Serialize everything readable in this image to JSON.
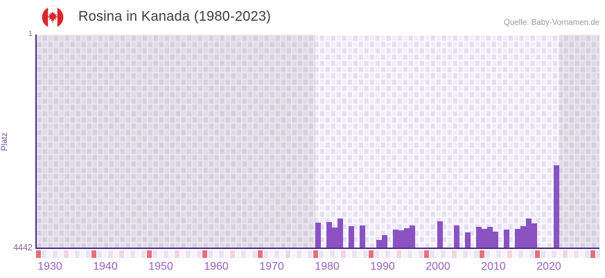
{
  "header": {
    "title": "Rosina in Kanada (1980-2023)",
    "source": "Quelle: Baby-Vornamen.de",
    "flag": "canada"
  },
  "chart_data": {
    "type": "bar",
    "title": "Rosina in Kanada (1980-2023)",
    "xlabel": "",
    "ylabel": "Platz",
    "y_axis": {
      "min": 1,
      "max": 4442,
      "inverted": true,
      "top_tick_label": "1",
      "bottom_tick_label": "4442"
    },
    "x_axis": {
      "start_year": 1928,
      "end_year": 2029,
      "tick_labels": [
        "1930",
        "1940",
        "1950",
        "1960",
        "1970",
        "1980",
        "1990",
        "2000",
        "2010",
        "2020"
      ]
    },
    "grid": "checkerboard",
    "legend": false,
    "series": [
      {
        "name": "Platz",
        "points": [
          {
            "year": 1978,
            "rank": 3920
          },
          {
            "year": 1980,
            "rank": 3910
          },
          {
            "year": 1981,
            "rank": 4030
          },
          {
            "year": 1982,
            "rank": 3840
          },
          {
            "year": 1984,
            "rank": 4000
          },
          {
            "year": 1986,
            "rank": 3980
          },
          {
            "year": 1989,
            "rank": 4280
          },
          {
            "year": 1990,
            "rank": 4180
          },
          {
            "year": 1992,
            "rank": 4070
          },
          {
            "year": 1993,
            "rank": 4080
          },
          {
            "year": 1994,
            "rank": 4040
          },
          {
            "year": 1995,
            "rank": 3980
          },
          {
            "year": 2000,
            "rank": 3900
          },
          {
            "year": 2003,
            "rank": 3980
          },
          {
            "year": 2005,
            "rank": 4130
          },
          {
            "year": 2007,
            "rank": 4010
          },
          {
            "year": 2008,
            "rank": 4050
          },
          {
            "year": 2009,
            "rank": 4010
          },
          {
            "year": 2010,
            "rank": 4110
          },
          {
            "year": 2012,
            "rank": 4070
          },
          {
            "year": 2014,
            "rank": 4050
          },
          {
            "year": 2015,
            "rank": 4000
          },
          {
            "year": 2016,
            "rank": 3840
          },
          {
            "year": 2017,
            "rank": 3940
          },
          {
            "year": 2021,
            "rank": 2720
          }
        ]
      }
    ],
    "data_start_year": 1978,
    "no_data_from_year": 2022,
    "strip_markers": {
      "red_phase": 0,
      "pink_phase": 5,
      "interval": 10,
      "cells": 102
    }
  },
  "colors": {
    "bar": "#8a53c1",
    "axis_line": "#4e2a84",
    "x_tick_label": "#9a5fc4",
    "y_tick_label": "#80619f",
    "title": "#3b3b3b",
    "source": "#9a9a9a",
    "strip_red": "#e5707b",
    "strip_pink": "#f2d5e1",
    "strip_even": "#f7f4fb",
    "strip_odd": "#e9e4f3",
    "flag_red": "#d8262c"
  }
}
